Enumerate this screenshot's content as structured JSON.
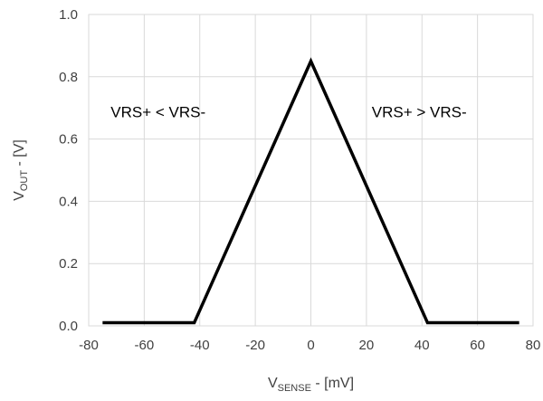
{
  "chart_data": {
    "type": "line",
    "title": "",
    "xlabel": {
      "main": "V",
      "sub": "SENSE",
      "rest": " - [mV]"
    },
    "ylabel": {
      "main": "V",
      "sub": "OUT",
      "rest": " - [V]"
    },
    "xlim": [
      -80,
      80
    ],
    "ylim": [
      0.0,
      1.0
    ],
    "xticks": [
      -80,
      -60,
      -40,
      -20,
      0,
      20,
      40,
      60,
      80
    ],
    "yticks": [
      0.0,
      0.2,
      0.4,
      0.6,
      0.8,
      1.0
    ],
    "xtick_labels": [
      "-80",
      "-60",
      "-40",
      "-20",
      "0",
      "20",
      "40",
      "60",
      "80"
    ],
    "ytick_labels": [
      "0.0",
      "0.2",
      "0.4",
      "0.6",
      "0.8",
      "1.0"
    ],
    "grid": true,
    "series": [
      {
        "color": "#000000",
        "x": [
          -75,
          -42,
          0,
          42,
          75
        ],
        "y": [
          0.01,
          0.01,
          0.85,
          0.01,
          0.01
        ]
      }
    ],
    "annotations": [
      {
        "text": "VRS+ < VRS-",
        "x": -55,
        "y": 0.67
      },
      {
        "text": "VRS+ > VRS-",
        "x": 39,
        "y": 0.67
      }
    ]
  }
}
